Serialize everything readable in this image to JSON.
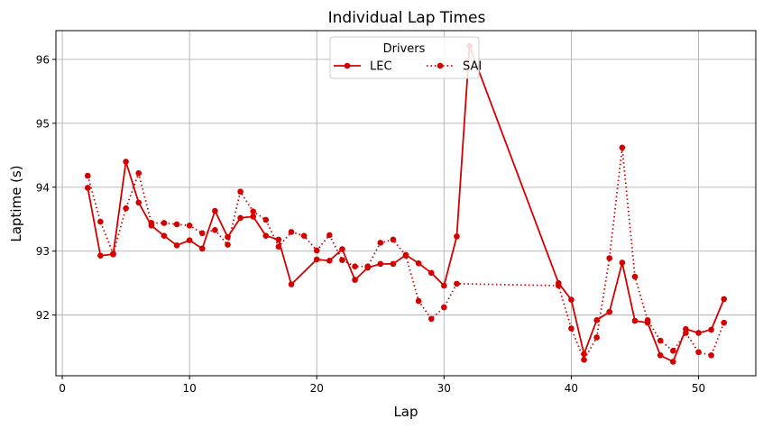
{
  "chart_data": {
    "type": "line",
    "title": "Individual Lap Times",
    "xlabel": "Lap",
    "ylabel": "Laptime (s)",
    "xlim": [
      -0.5,
      54.5
    ],
    "ylim": [
      91.05,
      96.45
    ],
    "x_ticks": [
      0,
      10,
      20,
      30,
      40,
      50
    ],
    "y_ticks": [
      92,
      93,
      94,
      95,
      96
    ],
    "grid": true,
    "legend": {
      "title": "Drivers",
      "placement": "top-center",
      "columns": 2
    },
    "series": [
      {
        "name": "LEC",
        "color": "#d40000",
        "linestyle": "solid",
        "marker": "circle",
        "x": [
          2,
          3,
          4,
          5,
          6,
          7,
          8,
          9,
          10,
          11,
          12,
          13,
          14,
          15,
          16,
          17,
          18,
          20,
          21,
          22,
          23,
          24,
          25,
          26,
          27,
          28,
          29,
          30,
          31,
          32,
          39,
          40,
          41,
          42,
          43,
          44,
          45,
          46,
          47,
          48,
          49,
          50,
          51,
          52
        ],
        "y": [
          93.99,
          92.93,
          92.95,
          94.4,
          93.76,
          93.4,
          93.24,
          93.09,
          93.17,
          93.04,
          93.63,
          93.22,
          93.52,
          93.54,
          93.24,
          93.18,
          92.48,
          92.87,
          92.85,
          93.03,
          92.55,
          92.74,
          92.8,
          92.8,
          92.94,
          92.81,
          92.66,
          92.46,
          93.23,
          96.21,
          92.5,
          92.24,
          91.39,
          91.92,
          92.05,
          92.82,
          91.91,
          91.88,
          91.37,
          91.27,
          91.78,
          91.72,
          91.77,
          92.25
        ]
      },
      {
        "name": "SAI",
        "color": "#d40000",
        "linestyle": "dotted",
        "marker": "circle",
        "x": [
          2,
          3,
          4,
          5,
          6,
          7,
          8,
          9,
          10,
          11,
          12,
          13,
          14,
          15,
          16,
          17,
          18,
          19,
          20,
          21,
          22,
          23,
          24,
          25,
          26,
          27,
          28,
          29,
          30,
          31,
          39,
          40,
          41,
          42,
          43,
          44,
          45,
          46,
          47,
          48,
          49,
          50,
          51,
          52
        ],
        "y": [
          94.18,
          93.46,
          92.96,
          93.67,
          94.22,
          93.44,
          93.44,
          93.42,
          93.4,
          93.28,
          93.33,
          93.1,
          93.93,
          93.62,
          93.49,
          93.07,
          93.3,
          93.24,
          93.01,
          93.25,
          92.86,
          92.76,
          92.76,
          93.13,
          93.18,
          92.93,
          92.22,
          91.94,
          92.12,
          92.49,
          92.46,
          91.79,
          91.3,
          91.65,
          92.89,
          94.62,
          92.6,
          91.92,
          91.6,
          91.44,
          91.72,
          91.42,
          91.37,
          91.88
        ]
      }
    ]
  }
}
